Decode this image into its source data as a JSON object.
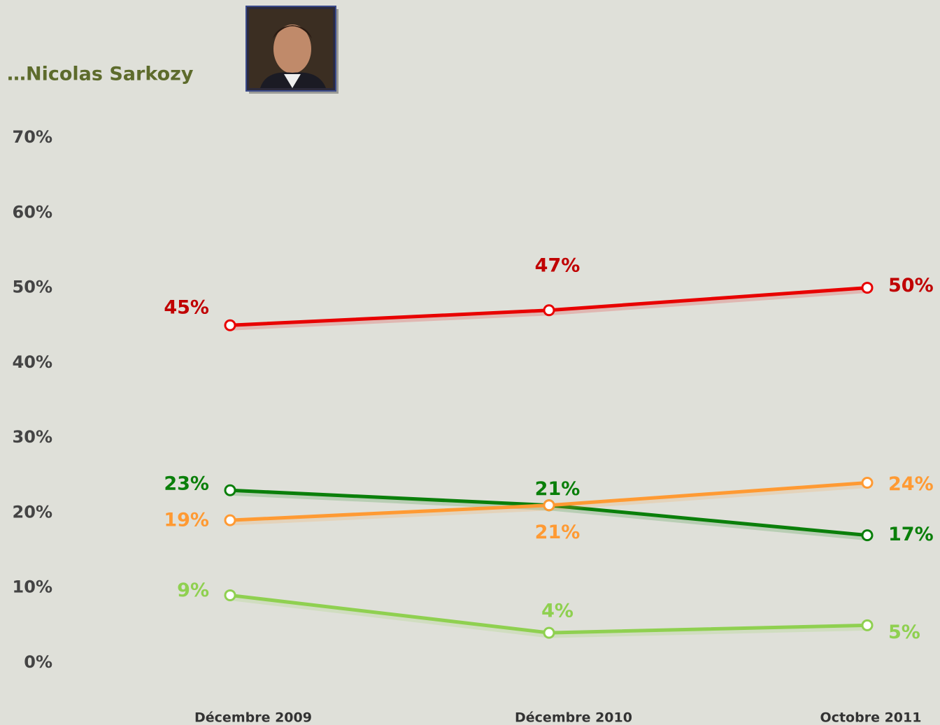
{
  "chart_data": {
    "type": "line",
    "title": "…Nicolas Sarkozy",
    "categories": [
      "Décembre 2009",
      "Décembre 2010",
      "Octobre 2011"
    ],
    "series": [
      {
        "color": "#e80000",
        "label_color": "#c00000",
        "values": [
          45,
          47,
          50
        ],
        "value_labels": [
          "45%",
          "47%",
          "50%"
        ]
      },
      {
        "color": "#0a7f0a",
        "label_color": "#0a7f0a",
        "values": [
          23,
          21,
          17
        ],
        "value_labels": [
          "23%",
          "21%",
          "17%"
        ]
      },
      {
        "color": "#ff9a33",
        "label_color": "#ff9a33",
        "values": [
          19,
          21,
          24
        ],
        "value_labels": [
          "19%",
          "21%",
          "24%"
        ]
      },
      {
        "color": "#8fd050",
        "label_color": "#8fd050",
        "values": [
          9,
          4,
          5
        ],
        "value_labels": [
          "9%",
          "4%",
          "5%"
        ]
      }
    ],
    "ylim": [
      0,
      70
    ],
    "yticks": [
      {
        "value": 0,
        "label": "0%"
      },
      {
        "value": 10,
        "label": "10%"
      },
      {
        "value": 20,
        "label": "20%"
      },
      {
        "value": 30,
        "label": "30%"
      },
      {
        "value": 40,
        "label": "40%"
      },
      {
        "value": 50,
        "label": "50%"
      },
      {
        "value": 60,
        "label": "60%"
      },
      {
        "value": 70,
        "label": "70%"
      }
    ],
    "grid": false
  }
}
